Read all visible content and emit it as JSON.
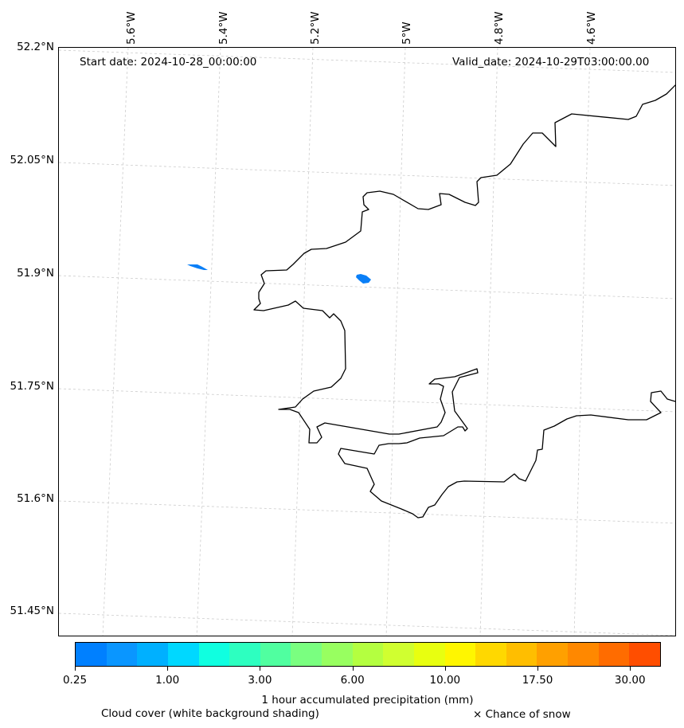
{
  "header": {
    "start_date": "Start date: 2024-10-28_00:00:00",
    "valid_date": "Valid_date: 2024-10-29T03:00:00.00"
  },
  "map": {
    "lat_labels": [
      "52.2°N",
      "52.05°N",
      "51.9°N",
      "51.75°N",
      "51.6°N",
      "51.45°N"
    ],
    "lon_labels": [
      "5.6°W",
      "5.4°W",
      "5.2°W",
      "5°W",
      "4.8°W",
      "4.6°W"
    ],
    "coastline_color": "#000000",
    "gridline_color": "#cccccc",
    "precip_patches": [
      {
        "id": "patch-1",
        "value_mm": 0.25,
        "color": "#0a7ff7"
      },
      {
        "id": "patch-2",
        "value_mm": 0.25,
        "color": "#0a7ff7"
      }
    ]
  },
  "colorbar": {
    "colors": [
      "#0080ff",
      "#0a96ff",
      "#00b0ff",
      "#00d8ff",
      "#10ffe0",
      "#2dffc0",
      "#50ffa0",
      "#7aff80",
      "#98ff60",
      "#b4ff40",
      "#d0ff30",
      "#e8ff10",
      "#fff600",
      "#ffd800",
      "#ffbe00",
      "#ffa000",
      "#ff8800",
      "#ff6c00",
      "#ff4e00"
    ],
    "tick_labels": [
      "0.25",
      "1.00",
      "3.00",
      "6.00",
      "10.00",
      "17.50",
      "30.00"
    ],
    "label": "1 hour accumulated precipitation (mm)"
  },
  "footer": {
    "cloud_note": "Cloud cover (white background shading)",
    "snow_note": "× Chance of snow"
  }
}
